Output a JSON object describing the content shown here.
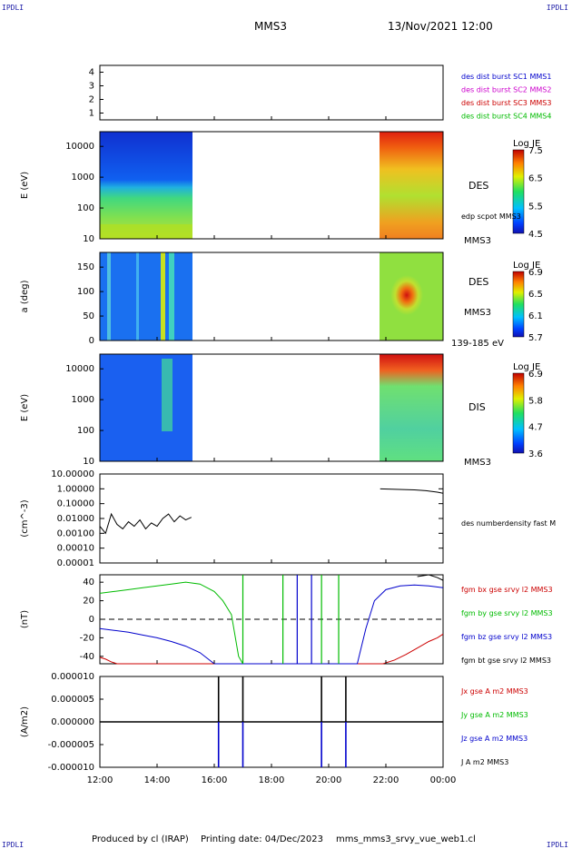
{
  "header": {
    "corner_label": "IPDLI",
    "spacecraft": "MMS3",
    "datetime": "13/Nov/2021 12:00"
  },
  "footer": {
    "produced_by": "Produced by cl (IRAP)",
    "printing_date": "Printing date: 04/Dec/2023",
    "filename": "mms_mms3_srvy_vue_web1.cl"
  },
  "colors": {
    "mms1": "#0000cc",
    "mms2": "#cc00cc",
    "mms3": "#cc0000",
    "mms4": "#00bb00",
    "bx": "#cc0000",
    "by": "#00bb00",
    "bz": "#0000cc",
    "bt": "#000000"
  },
  "chart_data": [
    {
      "type": "scatter",
      "panel": "spacecraft-availability",
      "ylim": [
        0.5,
        4.5
      ],
      "y_ticks": [
        "1",
        "2",
        "3",
        "4"
      ],
      "legend": [
        {
          "label": "des dist burst SC1 MMS1",
          "color": "#0000cc"
        },
        {
          "label": "des dist burst SC2 MMS2",
          "color": "#cc00cc"
        },
        {
          "label": "des dist burst SC3 MMS3",
          "color": "#cc0000"
        },
        {
          "label": "des dist burst SC4 MMS4",
          "color": "#00bb00"
        }
      ]
    },
    {
      "type": "heatmap",
      "panel": "des-energy-spectrogram",
      "ylabel": "E (eV)",
      "y_scale": "log",
      "ylim": [
        10,
        30000
      ],
      "y_ticks": [
        "10000",
        "1000",
        "100",
        "10"
      ],
      "colorbar_title": "Log JE",
      "colorbar_ticks": [
        "7.5",
        "6.5",
        "5.5",
        "4.5"
      ],
      "colorbar_range": [
        4.5,
        7.5
      ],
      "label": "DES",
      "right_labels": [
        "edp scpot MMS3",
        "MMS3"
      ],
      "data_intervals_hours": [
        [
          12.0,
          15.25
        ],
        [
          21.8,
          24.0
        ]
      ]
    },
    {
      "type": "heatmap",
      "panel": "des-pitch-angle",
      "ylabel": "a (deg)",
      "ylim": [
        0,
        180
      ],
      "y_ticks": [
        "150",
        "100",
        "50",
        "0"
      ],
      "colorbar_title": "Log JE",
      "colorbar_ticks": [
        "6.9",
        "6.5",
        "6.1",
        "5.7"
      ],
      "colorbar_range": [
        5.7,
        6.9
      ],
      "label": "DES",
      "right_labels": [
        "MMS3",
        "139-185 eV"
      ],
      "data_intervals_hours": [
        [
          12.0,
          15.25
        ],
        [
          21.8,
          24.0
        ]
      ]
    },
    {
      "type": "heatmap",
      "panel": "dis-energy-spectrogram",
      "ylabel": "E (eV)",
      "y_scale": "log",
      "ylim": [
        10,
        30000
      ],
      "y_ticks": [
        "10000",
        "1000",
        "100",
        "10"
      ],
      "colorbar_title": "Log JE",
      "colorbar_ticks": [
        "6.9",
        "5.8",
        "4.7",
        "3.6"
      ],
      "colorbar_range": [
        3.6,
        6.9
      ],
      "label": "DIS",
      "right_labels": [
        "MMS3"
      ],
      "data_intervals_hours": [
        [
          12.0,
          15.25
        ],
        [
          21.8,
          24.0
        ]
      ]
    },
    {
      "type": "line",
      "panel": "number-density",
      "ylabel": "(cm^-3)",
      "y_scale": "log",
      "ylim": [
        1e-05,
        10
      ],
      "y_ticks": [
        "10.00000",
        "1.00000",
        "0.10000",
        "0.01000",
        "0.00100",
        "0.00010",
        "0.00001"
      ],
      "series": [
        {
          "name": "des numberdensity fast M",
          "color": "#000000",
          "x": [
            12.0,
            12.2,
            12.4,
            12.6,
            12.8,
            13.0,
            13.2,
            13.4,
            13.6,
            13.8,
            14.0,
            14.2,
            14.4,
            14.6,
            14.8,
            15.0,
            15.2
          ],
          "y": [
            0.003,
            0.001,
            0.02,
            0.004,
            0.002,
            0.006,
            0.003,
            0.008,
            0.002,
            0.005,
            0.003,
            0.01,
            0.02,
            0.006,
            0.015,
            0.008,
            0.012
          ]
        },
        {
          "name": "",
          "color": "#000000",
          "x": [
            21.8,
            22.2,
            22.6,
            23.0,
            23.4,
            23.8,
            24.0
          ],
          "y": [
            1.0,
            0.95,
            0.9,
            0.85,
            0.75,
            0.6,
            0.5
          ]
        }
      ]
    },
    {
      "type": "line",
      "panel": "magnetic-field",
      "ylabel": "(nT)",
      "ylim": [
        -48,
        48
      ],
      "y_ticks": [
        "40",
        "20",
        "0",
        "-20",
        "-40"
      ],
      "series": [
        {
          "name": "fgm bx gse srvy l2 MMS3",
          "color": "#cc0000",
          "x": [
            12.0,
            12.2,
            12.4,
            12.6,
            21.9,
            22.3,
            22.7,
            23.1,
            23.5,
            23.8,
            24.0
          ],
          "y": [
            -41,
            -43,
            -46,
            -48,
            -48,
            -44,
            -38,
            -31,
            -24,
            -20,
            -16
          ]
        },
        {
          "name": "fgm by gse srvy l2 MMS3",
          "color": "#00bb00",
          "x": [
            12.0,
            12.5,
            13.0,
            13.5,
            14.0,
            14.5,
            15.0,
            15.5,
            16.0,
            16.3,
            16.6,
            16.85,
            17.0
          ],
          "y": [
            28,
            30,
            32,
            34,
            36,
            38,
            40,
            38,
            30,
            20,
            5,
            -40,
            -48
          ]
        },
        {
          "name": "fgm bz gse srvy l2 MMS3",
          "color": "#0000cc",
          "x": [
            12.0,
            12.5,
            13.0,
            13.5,
            14.0,
            14.5,
            15.0,
            15.5,
            16.0,
            21.0,
            21.3,
            21.6,
            22.0,
            22.5,
            23.0,
            23.5,
            24.0
          ],
          "y": [
            -10,
            -12,
            -14,
            -17,
            -20,
            -24,
            -29,
            -36,
            -48,
            -48,
            -10,
            20,
            32,
            36,
            37,
            36,
            34
          ]
        },
        {
          "name": "fgm bt gse srvy l2 MMS3",
          "color": "#000000",
          "x": [
            23.1,
            23.5,
            23.8,
            24.0
          ],
          "y": [
            46,
            48,
            45,
            42
          ]
        }
      ]
    },
    {
      "type": "line",
      "panel": "current-density",
      "ylabel": "(A/m2)",
      "ylim": [
        -1e-05,
        1e-05
      ],
      "y_ticks": [
        "0.000010",
        "0.000005",
        "0.000000",
        "-0.000005",
        "-0.000010"
      ],
      "x_ticks": [
        "12:00",
        "14:00",
        "16:00",
        "18:00",
        "20:00",
        "22:00",
        "00:00"
      ],
      "xlim_hours": [
        12,
        24
      ],
      "series": [
        {
          "name": "Jx gse A m2 MMS3",
          "color": "#cc0000"
        },
        {
          "name": "Jy gse A m2 MMS3",
          "color": "#00bb00"
        },
        {
          "name": "Jz gse A m2 MMS3",
          "color": "#0000cc",
          "spikes_hours": [
            16.15,
            17.0,
            19.75,
            20.6
          ]
        },
        {
          "name": "J A m2 MMS3",
          "color": "#000000",
          "spikes_hours": [
            16.15,
            17.0,
            19.75,
            20.6
          ]
        }
      ]
    }
  ]
}
